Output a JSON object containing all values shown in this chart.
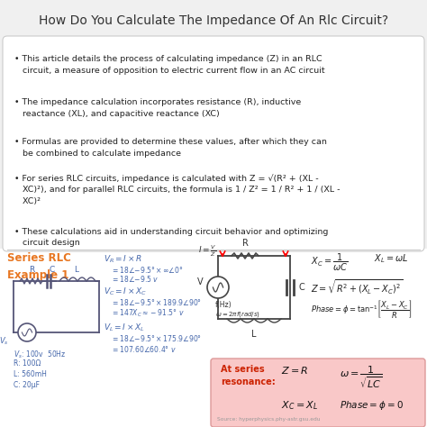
{
  "title": "How Do You Calculate The Impedance Of An Rlc Circuit?",
  "background_color": "#f0f0f0",
  "title_color": "#333333",
  "bullet_points": [
    "• This article details the process of calculating impedance (Z) in an RLC\n   circuit, a measure of opposition to electric current flow in an AC circuit",
    "• The impedance calculation incorporates resistance (R), inductive\n   reactance (XL), and capacitive reactance (XC)",
    "• Formulas are provided to determine these values, after which they can\n   be combined to calculate impedance",
    "• For series RLC circuits, impedance is calculated with Z = √(R² + (XL -\n   XC)²), and for parallel RLC circuits, the formula is 1 / Z² = 1 / R² + 1 / (XL -\n   XC)²",
    "• These calculations aid in understanding circuit behavior and optimizing\n   circuit design"
  ],
  "series_title_color": "#e87722",
  "resonance_box_color": "#f9c8c8",
  "resonance_title_color": "#cc2200",
  "source_text": "Source: hyperphysics.phy-astr.gsu.edu"
}
